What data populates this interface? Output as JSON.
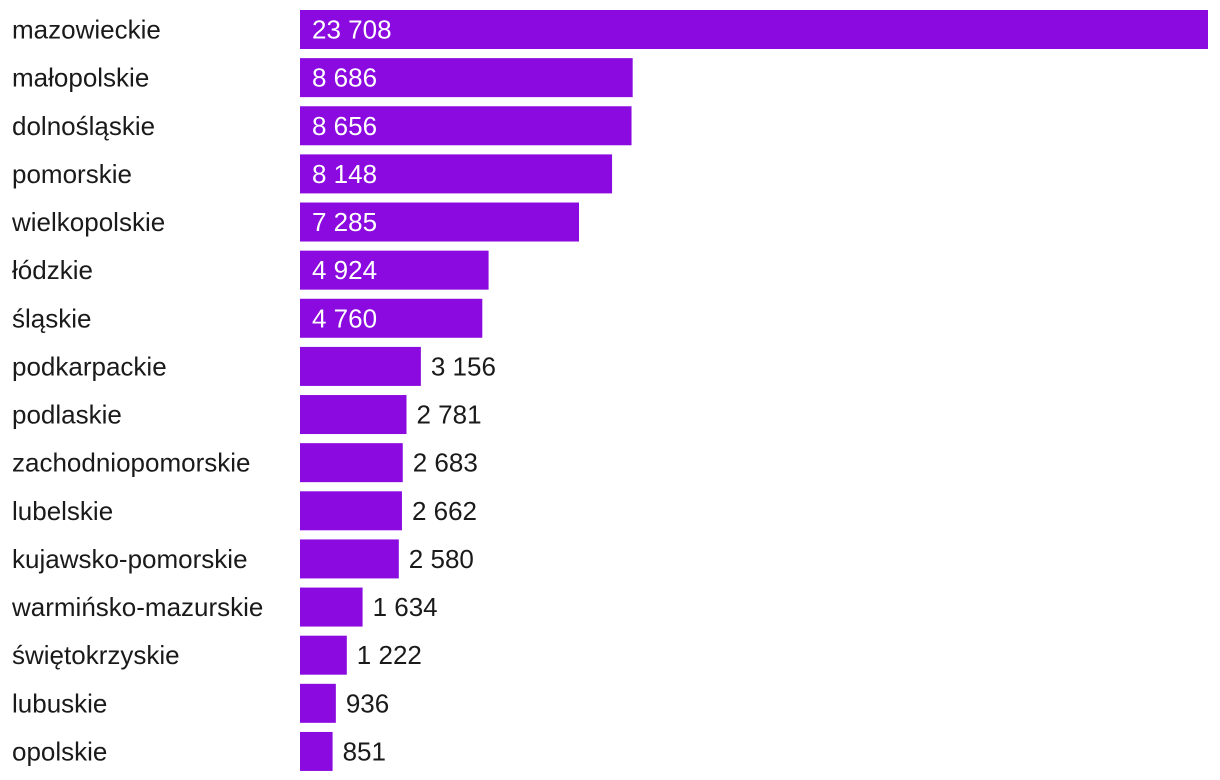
{
  "chart_data": {
    "type": "bar",
    "orientation": "horizontal",
    "categories": [
      "mazowieckie",
      "małopolskie",
      "dolnośląskie",
      "pomorskie",
      "wielkopolskie",
      "łódzkie",
      "śląskie",
      "podkarpackie",
      "podlaskie",
      "zachodniopomorskie",
      "lubelskie",
      "kujawsko-pomorskie",
      "warmińsko-mazurskie",
      "świętokrzyskie",
      "lubuskie",
      "opolskie"
    ],
    "values": [
      23708,
      8686,
      8656,
      8148,
      7285,
      4924,
      4760,
      3156,
      2781,
      2683,
      2662,
      2580,
      1634,
      1222,
      936,
      851
    ],
    "value_labels": [
      "23 708",
      "8 686",
      "8 656",
      "8 148",
      "7 285",
      "4 924",
      "4 760",
      "3 156",
      "2 781",
      "2 683",
      "2 662",
      "2 580",
      "1 634",
      "1 222",
      "936",
      "851"
    ],
    "title": "",
    "xlabel": "",
    "ylabel": "",
    "xlim": [
      0,
      23708
    ],
    "grid": false,
    "legend": "none",
    "colors": {
      "bar": "#8a0ae0",
      "label_inside": "#ffffff",
      "label_outside": "#1a1a1a",
      "category_text": "#1a1a1a"
    }
  }
}
